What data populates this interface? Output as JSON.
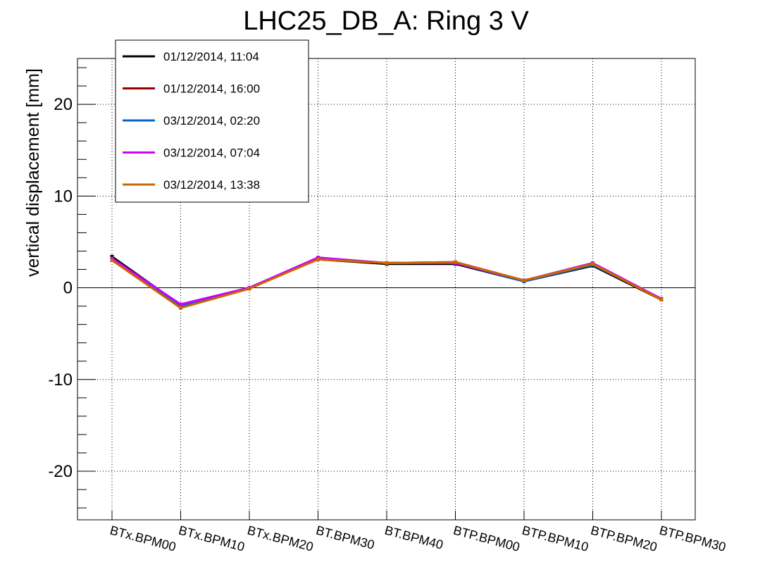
{
  "chart_data": {
    "type": "line",
    "title": "LHC25_DB_A: Ring 3 V",
    "xlabel": "",
    "ylabel": "vertical displacement [mm]",
    "ylim": [
      -25.3,
      25
    ],
    "yticks": [
      "20",
      "10",
      "0",
      "-10",
      "-20"
    ],
    "grid": true,
    "legend_placement": "top-left",
    "categories": [
      "BTx.BPM00",
      "BTx.BPM10",
      "BTx.BPM20",
      "BT.BPM30",
      "BT.BPM40",
      "BTP.BPM00",
      "BTP.BPM10",
      "BTP.BPM20",
      "BTP.BPM30"
    ],
    "series": [
      {
        "name": "01/12/2014, 11:04",
        "color": "#000000",
        "values": [
          3.4,
          -1.9,
          0.0,
          3.1,
          2.6,
          2.6,
          0.7,
          2.4,
          -1.3
        ]
      },
      {
        "name": "01/12/2014, 16:00",
        "color": "#990000",
        "values": [
          3.2,
          -2.1,
          -0.1,
          3.2,
          2.7,
          2.8,
          0.8,
          2.6,
          -1.3
        ]
      },
      {
        "name": "03/12/2014, 02:20",
        "color": "#0066cc",
        "values": [
          3.1,
          -2.0,
          0.0,
          3.2,
          2.7,
          2.7,
          0.7,
          2.5,
          -1.2
        ]
      },
      {
        "name": "03/12/2014, 07:04",
        "color": "#cc00ff",
        "values": [
          3.2,
          -1.8,
          0.0,
          3.3,
          2.7,
          2.7,
          0.8,
          2.7,
          -1.2
        ]
      },
      {
        "name": "03/12/2014, 13:38",
        "color": "#cc6600",
        "values": [
          3.0,
          -2.2,
          -0.1,
          3.1,
          2.7,
          2.8,
          0.8,
          2.6,
          -1.3
        ]
      }
    ]
  }
}
